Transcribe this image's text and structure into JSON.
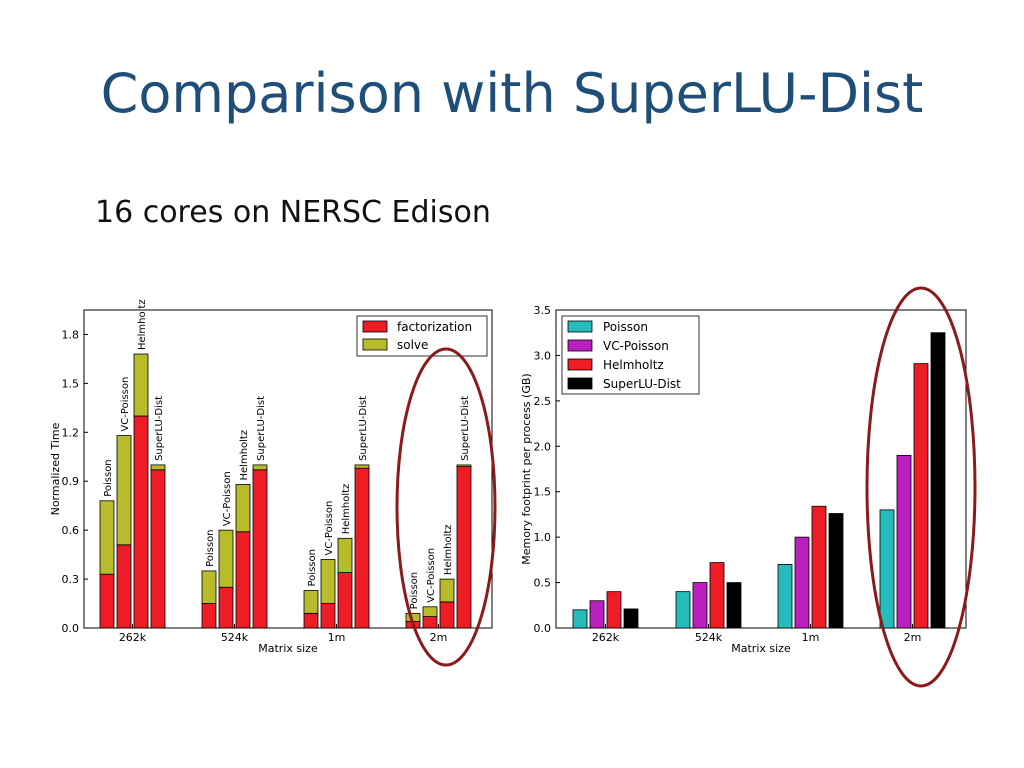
{
  "slide": {
    "title": "Comparison with SuperLU-Dist",
    "subtitle": "16 cores on NERSC Edison"
  },
  "colors": {
    "factorization": "#ee1c25",
    "solve": "#b8bc2a",
    "poisson": "#26bcbc",
    "vc_poisson": "#bb1fbf",
    "helmholtz": "#ee1c25",
    "superlu": "#000000",
    "highlight": "#8b1a1a",
    "title": "#1f4e79"
  },
  "chart_data": [
    {
      "type": "bar",
      "stacked": true,
      "xlabel": "Matrix size",
      "ylabel": "Normalized Time",
      "ylim": [
        0,
        1.95
      ],
      "yticks": [
        "0.0",
        "0.3",
        "0.6",
        "0.9",
        "1.2",
        "1.5",
        "1.8"
      ],
      "categories": [
        "262k",
        "524k",
        "1m",
        "2m"
      ],
      "bar_labels": [
        "Poisson",
        "VC-Poisson",
        "Helmholtz",
        "SuperLU-Dist"
      ],
      "legend": [
        "factorization",
        "solve"
      ],
      "legend_position": "top-right",
      "series": [
        {
          "name": "factorization",
          "values": [
            [
              0.33,
              0.51,
              1.3,
              0.97
            ],
            [
              0.15,
              0.25,
              0.59,
              0.97
            ],
            [
              0.09,
              0.15,
              0.34,
              0.98
            ],
            [
              0.04,
              0.07,
              0.16,
              0.99
            ]
          ]
        },
        {
          "name": "solve",
          "values": [
            [
              0.45,
              0.67,
              0.38,
              0.03
            ],
            [
              0.2,
              0.35,
              0.29,
              0.03
            ],
            [
              0.14,
              0.27,
              0.21,
              0.02
            ],
            [
              0.05,
              0.06,
              0.14,
              0.01
            ]
          ]
        }
      ],
      "highlighted_category": "2m"
    },
    {
      "type": "bar",
      "xlabel": "Matrix size",
      "ylabel": "Memory footprint per process (GB)",
      "ylim": [
        0,
        3.5
      ],
      "yticks": [
        "0.0",
        "0.5",
        "1.0",
        "1.5",
        "2.0",
        "2.5",
        "3.0",
        "3.5"
      ],
      "categories": [
        "262k",
        "524k",
        "1m",
        "2m"
      ],
      "legend_position": "top-left",
      "series": [
        {
          "name": "Poisson",
          "values": [
            0.2,
            0.4,
            0.7,
            1.3
          ]
        },
        {
          "name": "VC-Poisson",
          "values": [
            0.3,
            0.5,
            1.0,
            1.9
          ]
        },
        {
          "name": "Helmholtz",
          "values": [
            0.4,
            0.72,
            1.34,
            2.91
          ]
        },
        {
          "name": "SuperLU-Dist",
          "values": [
            0.21,
            0.5,
            1.26,
            3.25
          ]
        }
      ],
      "highlighted_category": "2m"
    }
  ]
}
